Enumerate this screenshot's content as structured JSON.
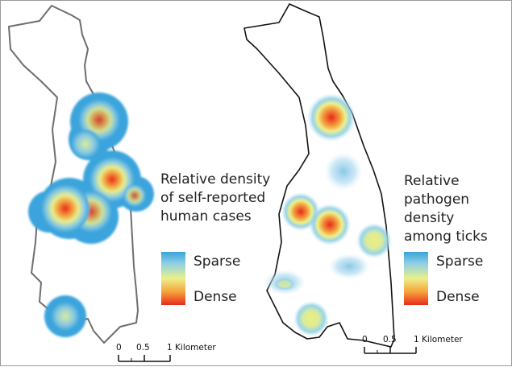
{
  "left_map": {
    "legend_title_lines": [
      "Relative density",
      "of self-reported",
      "human cases"
    ],
    "legend_sparse": "Sparse",
    "legend_dense": "Dense",
    "scale_labels": [
      "0",
      "0.5",
      "1 Kilometer"
    ]
  },
  "right_map": {
    "legend_title_lines": [
      "Relative",
      "pathogen density",
      "among ticks"
    ],
    "legend_sparse": "Sparse",
    "legend_dense": "Dense",
    "scale_labels": [
      "0",
      "0.5",
      "1 Kilometer"
    ]
  },
  "colors": {
    "outline_left": "#6e6e6e",
    "outline_right": "#111111",
    "sparse": "#3aa4dc",
    "mid": "#eaf08a",
    "dense": "#e8291c"
  }
}
